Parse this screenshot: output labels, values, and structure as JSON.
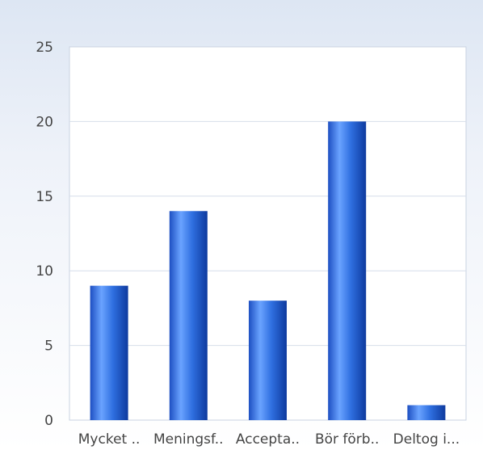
{
  "chart_data": {
    "type": "bar",
    "categories": [
      "Mycket ..",
      "Meningsf..",
      "Accepta..",
      "Bör förb..",
      "Deltog i..."
    ],
    "values": [
      9,
      14,
      8,
      20,
      1
    ],
    "ylim": [
      0,
      25
    ],
    "yticks": [
      0,
      5,
      10,
      15,
      20,
      25
    ],
    "grid": true,
    "colors": {
      "bar_light": "#6aa3ff",
      "bar_mid": "#2f6fe0",
      "bar_dark": "#0e3a9e",
      "grid": "#d6deea",
      "plot_bg": "#ffffff"
    }
  }
}
